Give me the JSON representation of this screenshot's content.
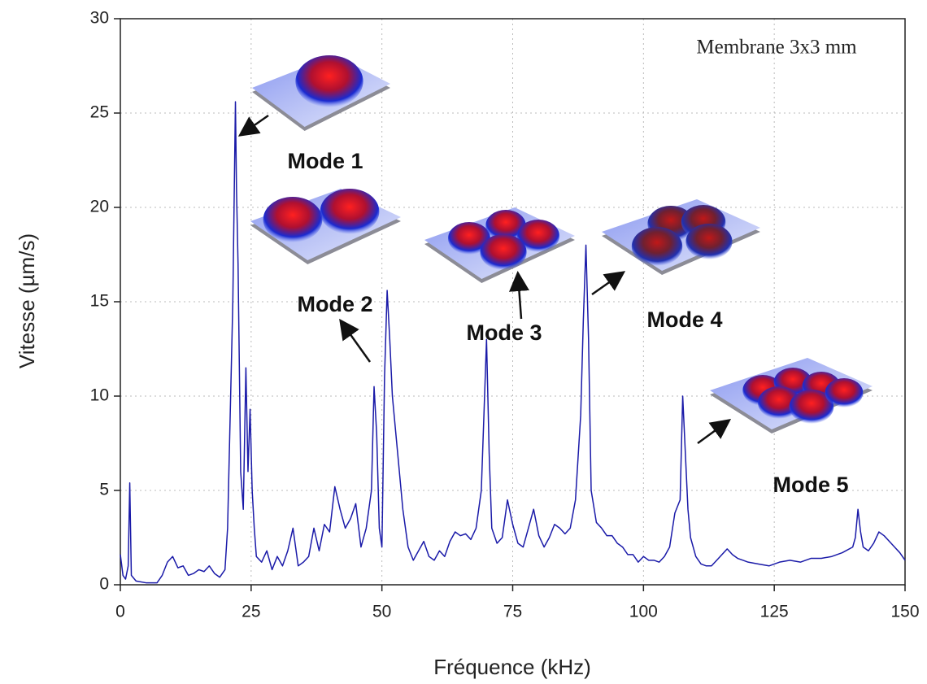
{
  "chart_data": {
    "type": "line",
    "x_label": "Fréquence (kHz)",
    "y_label": "Vitesse (µm/s)",
    "annotations": [
      "Membrane 3x3 mm",
      "Mode 1",
      "Mode 2",
      "Mode 3",
      "Mode 4",
      "Mode 5"
    ],
    "x": [
      0,
      0.5,
      1,
      1.5,
      1.8,
      2.1,
      3,
      5,
      7,
      8,
      9,
      10,
      11,
      12,
      13,
      14,
      15,
      16,
      17,
      18,
      19,
      20,
      20.5,
      21,
      21.5,
      22,
      22.2,
      22.5,
      23,
      23.5,
      24,
      24.4,
      24.8,
      25.2,
      25.6,
      26,
      27,
      28,
      29,
      30,
      31,
      32,
      33,
      34,
      35,
      36,
      37,
      38,
      39,
      40,
      41,
      42,
      43,
      44,
      45,
      46,
      47,
      48,
      48.5,
      49,
      49.5,
      50,
      50.5,
      51,
      51.5,
      52,
      53,
      54,
      55,
      56,
      57,
      58,
      59,
      60,
      61,
      62,
      63,
      64,
      65,
      66,
      67,
      68,
      69,
      69.5,
      70,
      70.5,
      71,
      72,
      73,
      74,
      75,
      76,
      77,
      78,
      79,
      80,
      81,
      82,
      83,
      84,
      85,
      86,
      87,
      88,
      88.5,
      89,
      89.5,
      90,
      91,
      92,
      93,
      94,
      95,
      96,
      97,
      98,
      99,
      100,
      101,
      102,
      103,
      104,
      105,
      106,
      107,
      107.5,
      108,
      108.5,
      109,
      110,
      111,
      112,
      113,
      114,
      115,
      116,
      117,
      118,
      119,
      120,
      122,
      124,
      126,
      128,
      130,
      132,
      134,
      136,
      138,
      140,
      140.5,
      141,
      141.5,
      142,
      143,
      144,
      145,
      146,
      147,
      148,
      149,
      150
    ],
    "series": [
      {
        "color": "#1a1aa8",
        "values": [
          1.6,
          0.5,
          0.3,
          1.0,
          5.4,
          0.5,
          0.2,
          0.1,
          0.1,
          0.5,
          1.2,
          1.5,
          0.9,
          1.0,
          0.5,
          0.6,
          0.8,
          0.7,
          1.0,
          0.6,
          0.4,
          0.8,
          3.0,
          9.0,
          15.0,
          25.6,
          21.0,
          17.0,
          6.0,
          4.0,
          11.5,
          6.0,
          9.3,
          5.0,
          3.0,
          1.5,
          1.2,
          1.8,
          0.8,
          1.5,
          1.0,
          1.8,
          3.0,
          1.0,
          1.2,
          1.5,
          3.0,
          1.8,
          3.2,
          2.8,
          5.2,
          4.0,
          3.0,
          3.5,
          4.3,
          2.0,
          3.0,
          5.0,
          10.5,
          8.0,
          3.0,
          2.0,
          11.0,
          15.6,
          13.0,
          10.0,
          7.0,
          4.0,
          2.0,
          1.3,
          1.8,
          2.3,
          1.5,
          1.3,
          1.8,
          1.5,
          2.3,
          2.8,
          2.6,
          2.7,
          2.4,
          3.0,
          5.0,
          9.0,
          13.0,
          7.0,
          3.0,
          2.2,
          2.5,
          4.5,
          3.2,
          2.2,
          2.0,
          3.0,
          4.0,
          2.6,
          2.0,
          2.5,
          3.2,
          3.0,
          2.7,
          3.0,
          4.5,
          9.0,
          14.0,
          18.0,
          13.0,
          5.0,
          3.3,
          3.0,
          2.6,
          2.6,
          2.2,
          2.0,
          1.6,
          1.6,
          1.2,
          1.5,
          1.3,
          1.3,
          1.2,
          1.5,
          2.0,
          3.8,
          4.5,
          10.0,
          7.0,
          4.0,
          2.5,
          1.5,
          1.1,
          1.0,
          1.0,
          1.3,
          1.6,
          1.9,
          1.6,
          1.4,
          1.3,
          1.2,
          1.1,
          1.0,
          1.2,
          1.3,
          1.2,
          1.4,
          1.4,
          1.5,
          1.7,
          2.0,
          2.5,
          4.0,
          2.8,
          2.0,
          1.8,
          2.2,
          2.8,
          2.6,
          2.3,
          2.0,
          1.7,
          1.3
        ]
      }
    ],
    "xlim": [
      0,
      150
    ],
    "xticks": [
      0,
      25,
      50,
      75,
      100,
      125,
      150
    ],
    "ylim": [
      0,
      30
    ],
    "yticks": [
      0,
      5,
      10,
      15,
      20,
      25,
      30
    ],
    "grid": true
  }
}
